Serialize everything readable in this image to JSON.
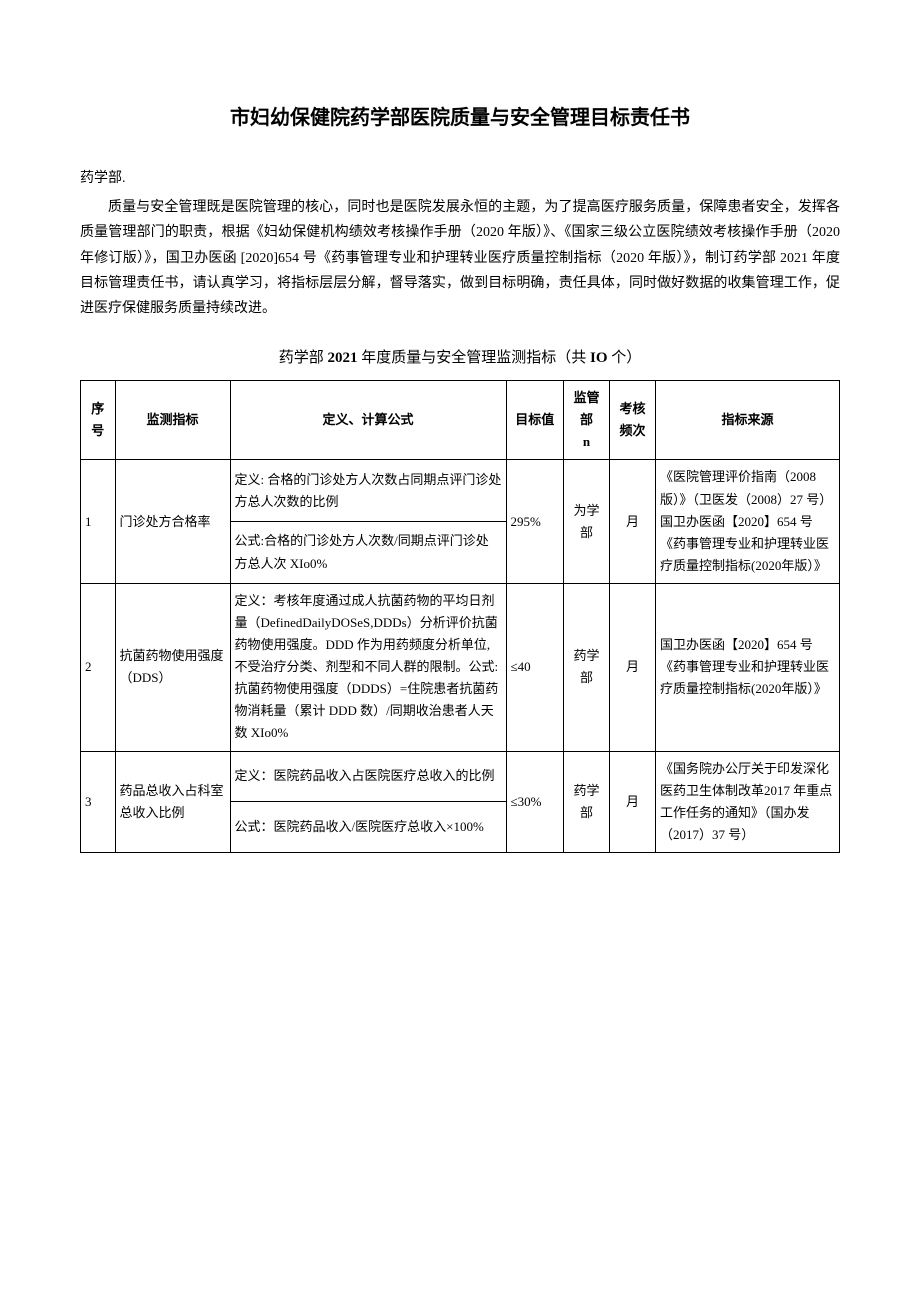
{
  "title": "市妇幼保健院药学部医院质量与安全管理目标责任书",
  "dept": "药学部.",
  "intro": "质量与安全管理既是医院管理的核心，同时也是医院发展永恒的主题，为了提高医疗服务质量，保障患者安全，发挥各质量管理部门的职责，根据《妇幼保健机构绩效考核操作手册（2020 年版）》、《国家三级公立医院绩效考核操作手册（2020 年修订版）》，国卫办医函 [2020]654 号《药事管理专业和护理转业医疗质量控制指标（2020 年版）》，制订药学部 2021 年度目标管理责任书，请认真学习，将指标层层分解，督导落实，做到目标明确，责任具体，同时做好数据的收集管理工作，促进医疗保健服务质量持续改进。",
  "subtitle_prefix": "药学部 ",
  "subtitle_bold1": "2021",
  "subtitle_mid": " 年度质量与安全管理监测指标（共 ",
  "subtitle_bold2": "IO",
  "subtitle_suffix": " 个）",
  "headers": {
    "seq": "序号",
    "indicator": "监测指标",
    "def": "定义、计算公式",
    "target": "目标值",
    "dept_line1": "监管",
    "dept_line2": "部",
    "dept_line3": "n",
    "freq_line1": "考核",
    "freq_line2": "频次",
    "source": "指标来源"
  },
  "rows": [
    {
      "seq": "1",
      "indicator": "门诊处方合格率",
      "def1": "定义: 合格的门诊处方人次数占同期点评门诊处方总人次数的比例",
      "def2": "公式:合格的门诊处方人次数/同期点评门诊处方总人次 XIo0%",
      "target": "295%",
      "dept": "为学部",
      "freq": "月",
      "source": "《医院管理评价指南（2008 版）》（卫医发（2008）27 号）国卫办医函【2020】654 号《药事管理专业和护理转业医疗质量控制指标(2020年版）》"
    },
    {
      "seq": "2",
      "indicator": "抗菌药物使用强度（DDS）",
      "def1": "定义：考核年度通过成人抗菌药物的平均日剂量（DefinedDailyDOSeS,DDDs）分析评价抗菌药物使用强度。DDD 作为用药频度分析单位,不受治疗分类、剂型和不同人群的限制。公式:抗菌药物使用强度（DDDS）=住院患者抗菌药物消耗量（累计 DDD 数）/同期收治患者人天数 XIo0%",
      "target": "≤40",
      "dept": "药学部",
      "freq": "月",
      "source": "国卫办医函【2020】654 号《药事管理专业和护理转业医疗质量控制指标(2020年版）》"
    },
    {
      "seq": "3",
      "indicator": "药品总收入占科室总收入比例",
      "def1": "定义：医院药品收入占医院医疗总收入的比例",
      "def2": "公式：医院药品收入/医院医疗总收入×100%",
      "target": "≤30%",
      "dept": "药学部",
      "freq": "月",
      "source": "《国务院办公厅关于印发深化医药卫生体制改革2017 年重点工作任务的通知》（国办发（2017）37 号）"
    }
  ]
}
